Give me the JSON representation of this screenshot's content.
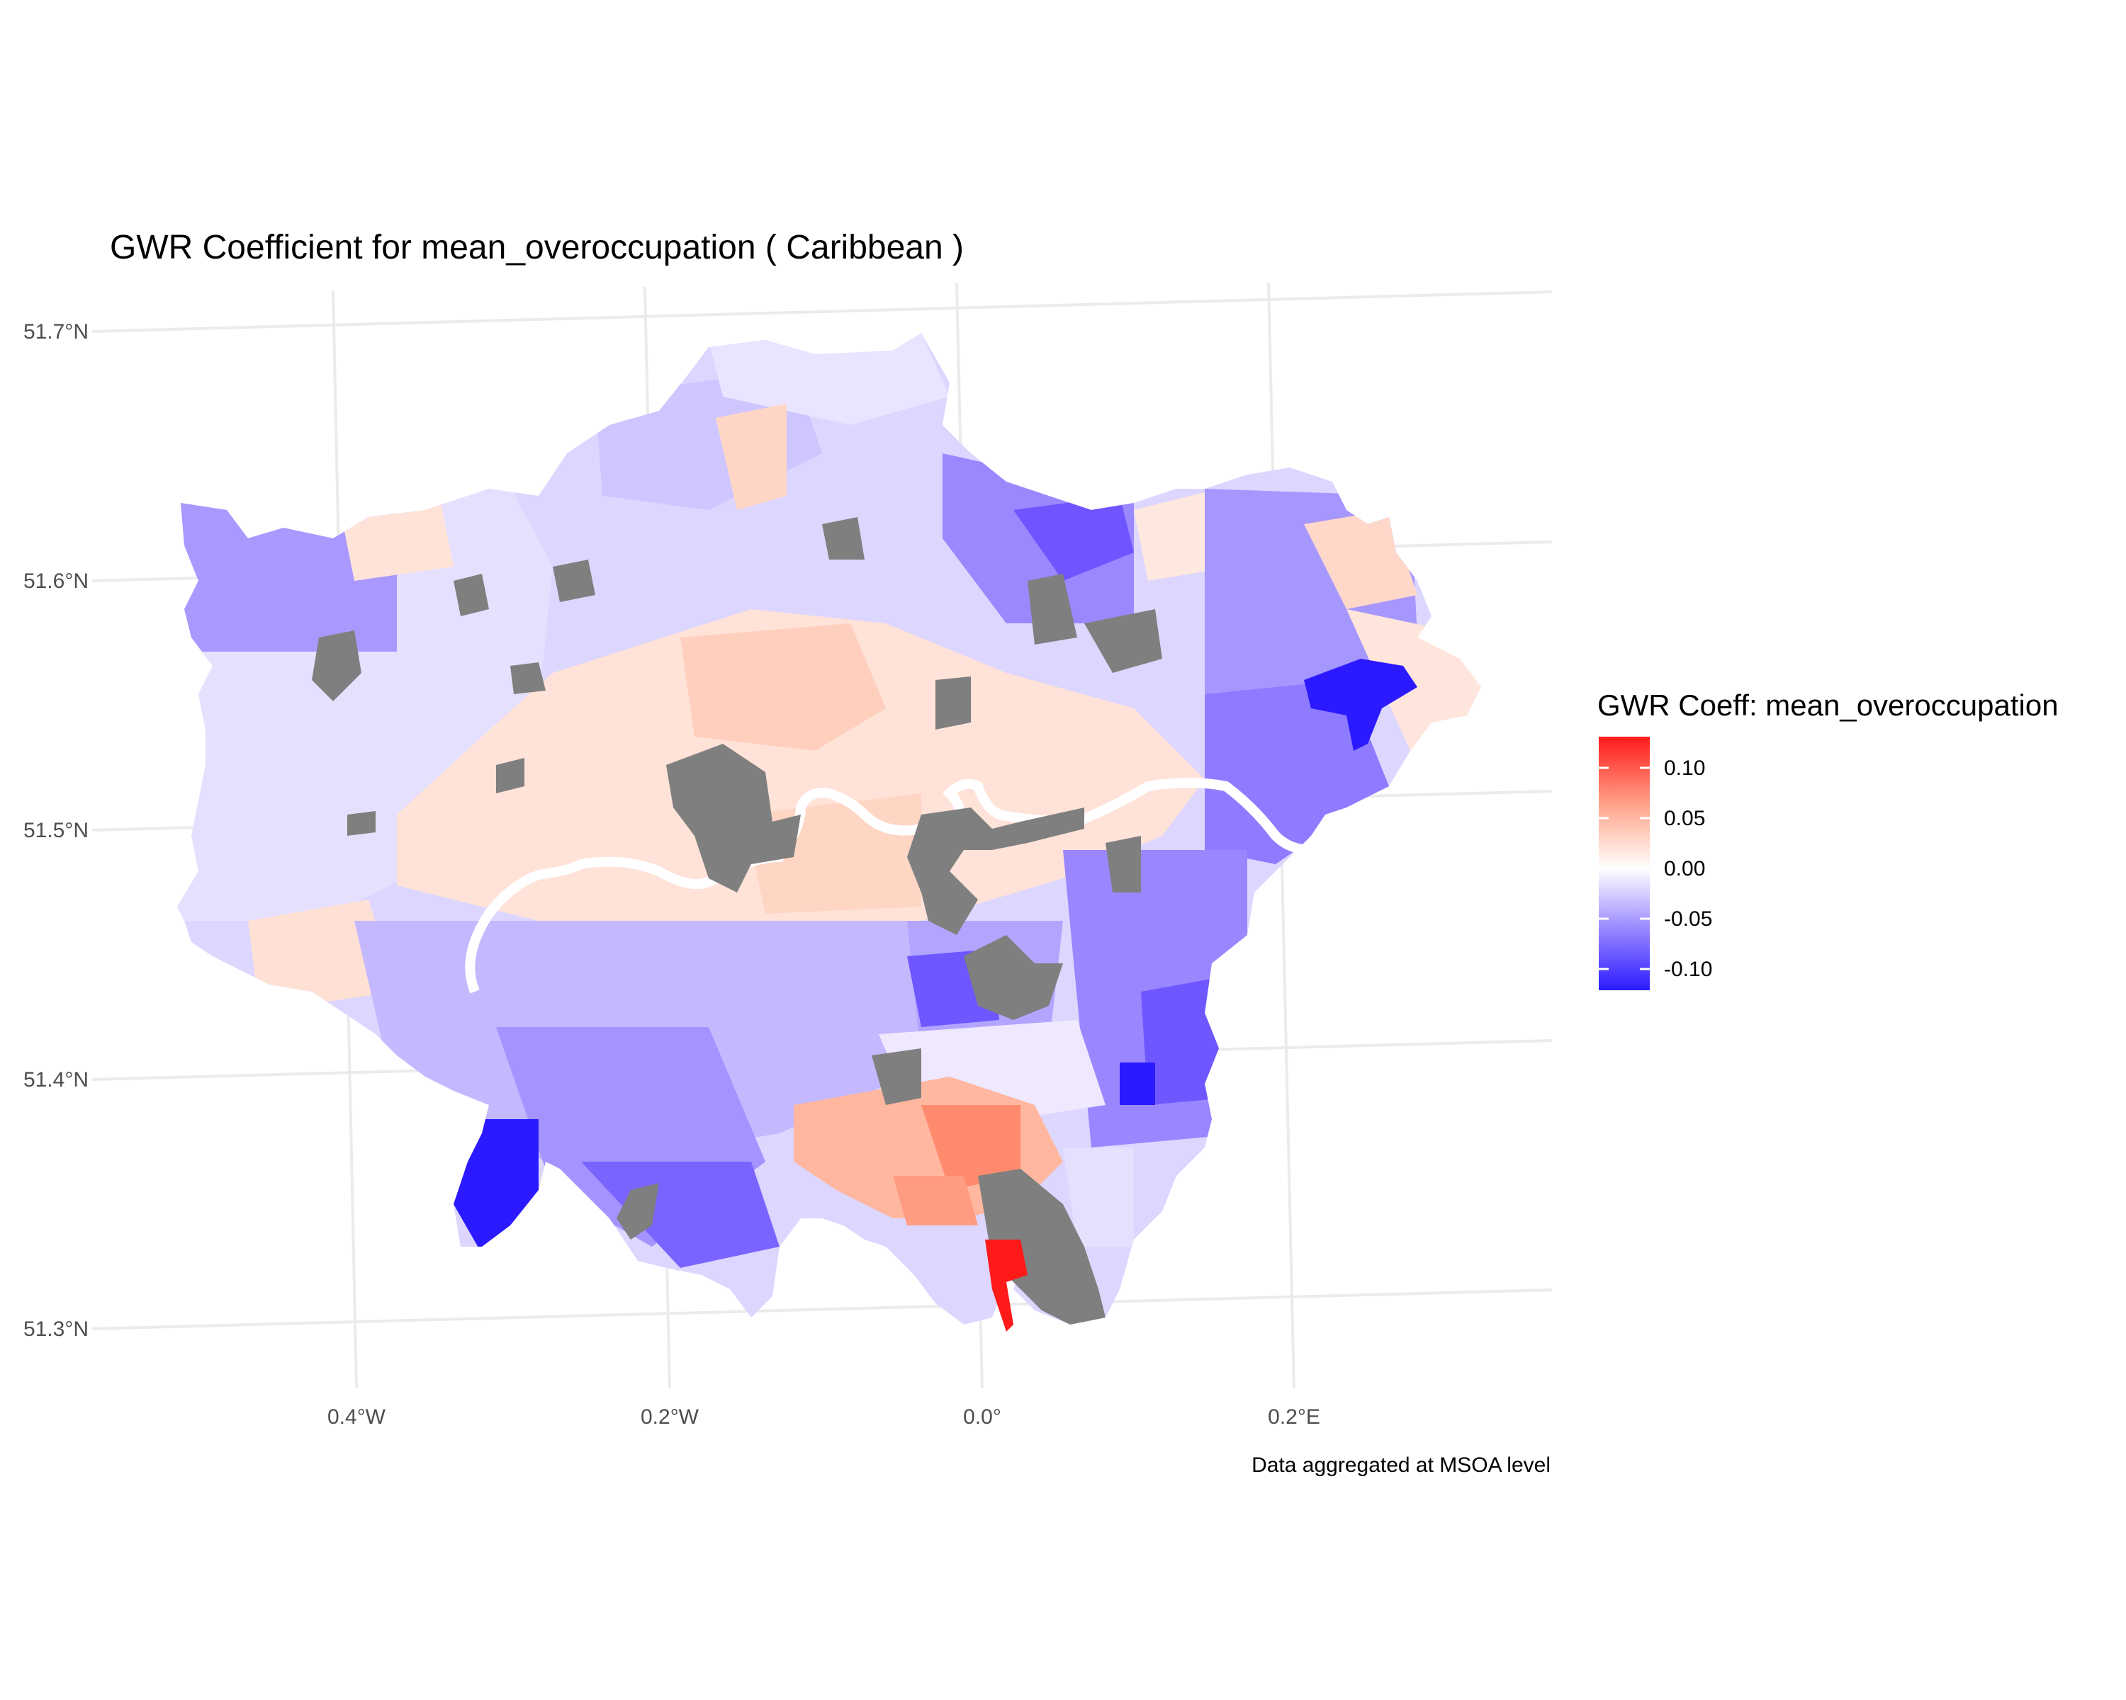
{
  "title": "GWR Coefficient for mean_overoccupation ( Caribbean )",
  "caption": "Data aggregated at MSOA level",
  "axes": {
    "x_ticks": [
      "0.4°W",
      "0.2°W",
      "0.0°",
      "0.2°E"
    ],
    "y_ticks": [
      "51.7°N",
      "51.6°N",
      "51.5°N",
      "51.4°N",
      "51.3°N"
    ]
  },
  "legend": {
    "title": "GWR Coeff: mean_overoccupation",
    "labels": [
      "0.10",
      "0.05",
      "0.00",
      "-0.05",
      "-0.10"
    ],
    "colors": {
      "high": "#ff1a1a",
      "mid": "#ffffff",
      "low": "#2b1aff",
      "missing": "#7f7f7f"
    }
  },
  "chart_data": {
    "type": "choropleth",
    "region": "Greater London",
    "variable": "GWR coefficient for mean_overoccupation (Caribbean)",
    "value_range": [
      -0.12,
      0.13
    ],
    "x_range": [
      -0.52,
      0.36
    ],
    "y_range": [
      51.26,
      51.72
    ],
    "grid": true,
    "legend_position": "right",
    "water_feature": "River Thames (white)",
    "missing_areas_color": "#7f7f7f"
  }
}
